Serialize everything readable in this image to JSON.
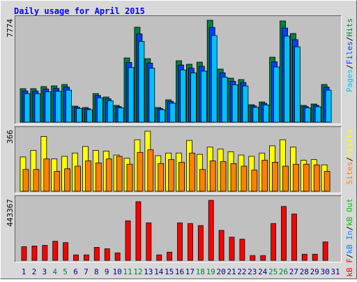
{
  "title": "Daily usage for April 2015",
  "chart_data": [
    {
      "type": "bar",
      "ylim": [
        0,
        7774
      ],
      "yticks": [
        7774
      ],
      "legend_separator": "/",
      "categories": [
        "1",
        "2",
        "3",
        "4",
        "5",
        "6",
        "7",
        "8",
        "9",
        "10",
        "11",
        "12",
        "13",
        "14",
        "15",
        "16",
        "17",
        "18",
        "19",
        "20",
        "21",
        "22",
        "23",
        "24",
        "25",
        "26",
        "27",
        "28",
        "29",
        "30",
        "31"
      ],
      "category_colors": [
        "#000080",
        "#000080",
        "#000080",
        "#008040",
        "#008040",
        "#000080",
        "#000080",
        "#000080",
        "#000080",
        "#000080",
        "#008040",
        "#008040",
        "#000080",
        "#000080",
        "#000080",
        "#000080",
        "#000080",
        "#008040",
        "#008040",
        "#000080",
        "#000080",
        "#000080",
        "#000080",
        "#000080",
        "#008040",
        "#008040",
        "#000080",
        "#000080",
        "#000080",
        "#000080",
        "#000080"
      ],
      "series": [
        {
          "name": "Hits",
          "color": "#008040",
          "values": [
            2556,
            2556,
            2716,
            2769,
            2875,
            1225,
            1118,
            2183,
            1917,
            1278,
            4899,
            7242,
            4845,
            1118,
            1704,
            4686,
            4420,
            4580,
            7774,
            4047,
            3355,
            3248,
            1331,
            1544,
            4952,
            7720,
            6762,
            1278,
            1384,
            2875,
            null
          ]
        },
        {
          "name": "Files",
          "color": "#0040FF",
          "values": [
            2377,
            2377,
            2526,
            2575,
            2674,
            1139,
            1040,
            2030,
            1783,
            1189,
            4556,
            6735,
            4506,
            1040,
            1585,
            4358,
            4111,
            4259,
            7230,
            3764,
            3120,
            3021,
            1238,
            1436,
            4605,
            7180,
            6289,
            1189,
            1287,
            2674,
            null
          ]
        },
        {
          "name": "Pages",
          "color": "#00C0FF",
          "values": [
            2173,
            2173,
            2309,
            2354,
            2444,
            1041,
            950,
            1856,
            1629,
            1086,
            4164,
            6156,
            4118,
            950,
            1448,
            3983,
            3757,
            3893,
            6608,
            3440,
            2852,
            2761,
            1131,
            1312,
            4209,
            6562,
            5748,
            1086,
            1176,
            2444,
            null
          ]
        }
      ]
    },
    {
      "type": "bar",
      "ylim": [
        0,
        366
      ],
      "yticks": [
        366
      ],
      "legend_separator": "/",
      "series": [
        {
          "name": "Visits",
          "color": "#FFFF00",
          "values": [
            209,
            249,
            334,
            197,
            213,
            233,
            273,
            249,
            245,
            221,
            201,
            314,
            366,
            217,
            233,
            233,
            310,
            225,
            269,
            257,
            241,
            221,
            213,
            233,
            277,
            314,
            269,
            189,
            193,
            161,
            null
          ]
        },
        {
          "name": "Sites",
          "color": "#FF8000",
          "values": [
            133,
            133,
            197,
            121,
            137,
            153,
            185,
            173,
            197,
            213,
            165,
            237,
            253,
            169,
            193,
            177,
            233,
            133,
            185,
            181,
            169,
            153,
            129,
            189,
            177,
            153,
            165,
            165,
            161,
            121,
            null
          ]
        }
      ]
    },
    {
      "type": "bar",
      "ylim": [
        0,
        443367
      ],
      "yticks": [
        443367
      ],
      "legend_separator": "/",
      "series": [
        {
          "name": "kB Out",
          "color": "#00C000",
          "values": [
            0,
            0,
            0,
            0,
            0,
            0,
            0,
            0,
            0,
            0,
            0,
            0,
            0,
            0,
            0,
            0,
            0,
            0,
            0,
            0,
            0,
            0,
            0,
            0,
            0,
            0,
            0,
            0,
            0,
            0,
            null
          ]
        },
        {
          "name": "kB In",
          "color": "#0080FF",
          "values": [
            0,
            0,
            0,
            0,
            0,
            0,
            0,
            0,
            0,
            0,
            0,
            0,
            0,
            0,
            0,
            0,
            0,
            0,
            0,
            0,
            0,
            0,
            0,
            0,
            0,
            0,
            0,
            0,
            0,
            0,
            null
          ]
        },
        {
          "name": "kB F",
          "color": "#FF0000",
          "values": [
            100765,
            105800,
            110840,
            141072,
            130995,
            40306,
            40306,
            95727,
            85650,
            55420,
            292219,
            433291,
            277104,
            40306,
            60458,
            277104,
            272066,
            256951,
            443367,
            221684,
            171301,
            156186,
            35268,
            35268,
            272066,
            398022,
            342602,
            45344,
            45344,
            136033,
            null
          ]
        }
      ]
    }
  ]
}
